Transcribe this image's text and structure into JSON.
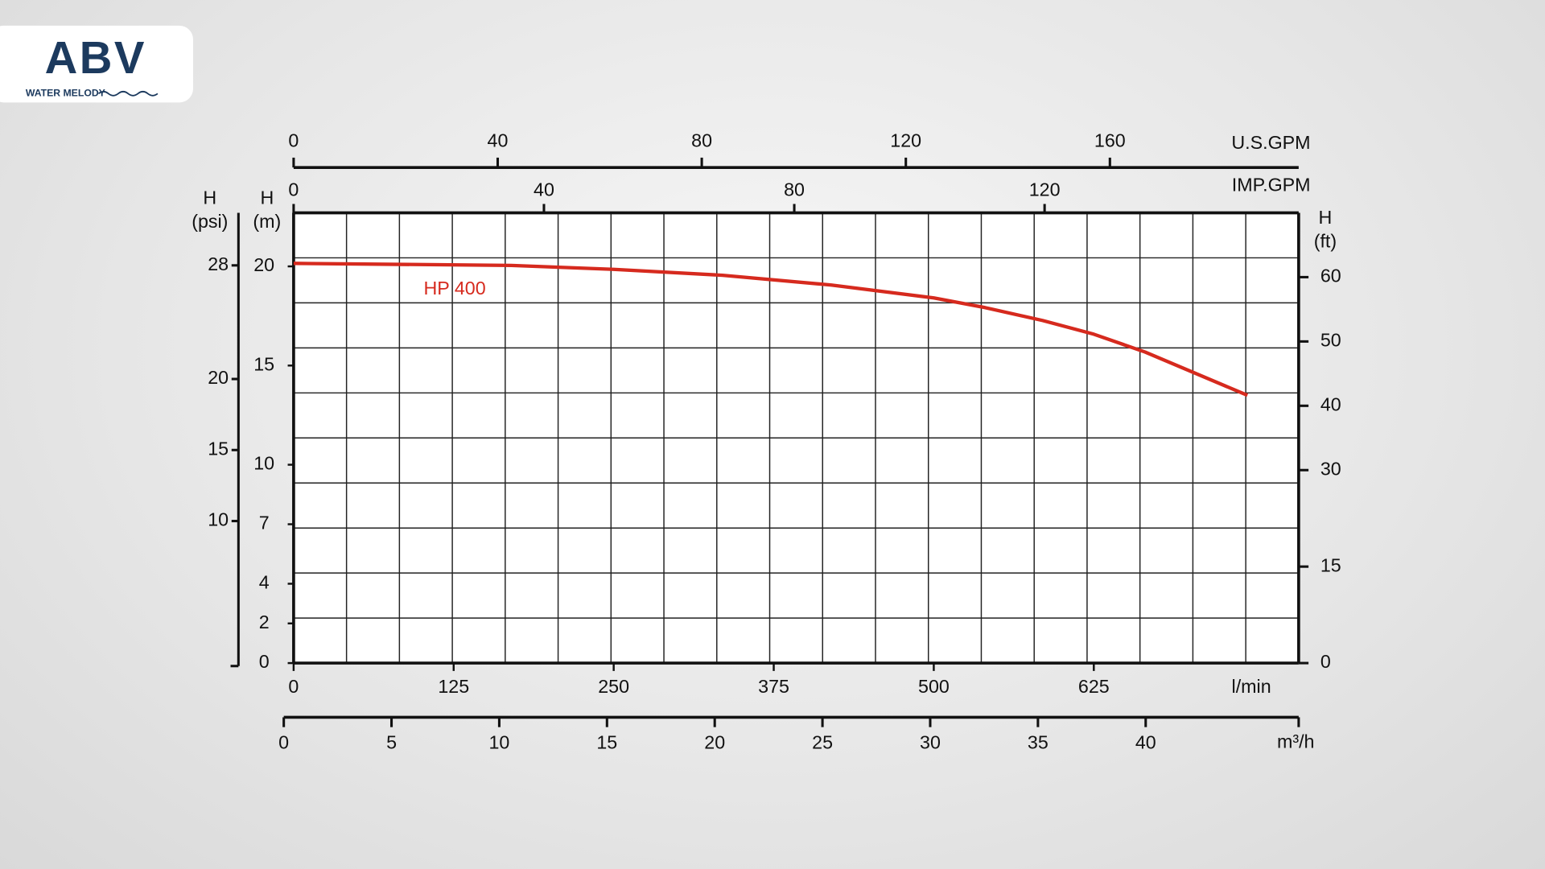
{
  "logo": {
    "mark": "ABV",
    "tagline": "WATER MELODY"
  },
  "chart_data": {
    "type": "line",
    "x": [
      0,
      170,
      250,
      335,
      420,
      500,
      540,
      585,
      625,
      665,
      745
    ],
    "series": [
      {
        "name": "HP 400",
        "color": "#d62a1e",
        "values": [
          20.15,
          20.05,
          19.85,
          19.55,
          19.06,
          18.41,
          17.92,
          17.27,
          16.58,
          15.68,
          13.5
        ]
      }
    ],
    "xlabel": "l/min",
    "xlim": [
      0,
      785
    ],
    "xticks": [
      0,
      125,
      250,
      375,
      500,
      625
    ],
    "ylabel": [
      "H",
      "(m)"
    ],
    "ylim": [
      0,
      22.7
    ],
    "yticks": [
      0,
      2,
      4,
      7,
      10,
      15,
      20
    ],
    "psi_axis": {
      "label": [
        "H",
        "(psi)"
      ],
      "lim": [
        0,
        31.7
      ],
      "ticks": [
        10,
        15,
        20,
        28
      ]
    },
    "ft_axis": {
      "label": [
        "H",
        "(ft)"
      ],
      "lim": [
        0,
        70
      ],
      "ticks": [
        0,
        15,
        30,
        40,
        50,
        60
      ]
    },
    "m3h_axis": {
      "label": "m³/h",
      "lim": [
        0,
        47.1
      ],
      "ticks": [
        0,
        5,
        10,
        15,
        20,
        25,
        30,
        35,
        40
      ]
    },
    "usgpm_axis": {
      "label": "U.S.GPM",
      "lim": [
        0,
        197
      ],
      "ticks": [
        0,
        40,
        80,
        120,
        160
      ]
    },
    "impgpm_axis": {
      "label": "IMP.GPM",
      "lim": [
        0,
        160.6
      ],
      "ticks": [
        0,
        40,
        80,
        120
      ]
    },
    "grid": true
  }
}
